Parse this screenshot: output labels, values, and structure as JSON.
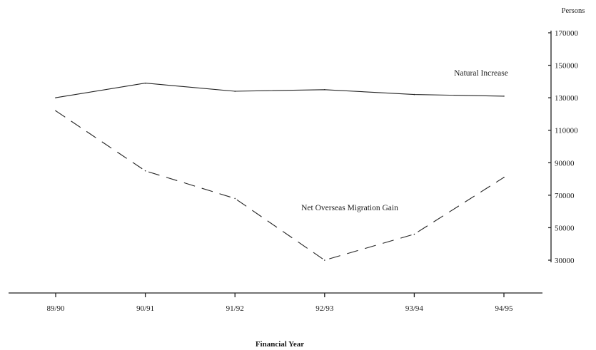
{
  "chart_data": {
    "type": "line",
    "categories": [
      "89/90",
      "90/91",
      "91/92",
      "92/93",
      "93/94",
      "94/95"
    ],
    "xlabel": "Financial Year",
    "ylabel": "Persons",
    "yticks": [
      "170000",
      "150000",
      "130000",
      "110000",
      "90000",
      "70000",
      "50000",
      "30000"
    ],
    "ylim": [
      30000,
      170000
    ],
    "grid": false,
    "legend": "none",
    "series": [
      {
        "name": "Natural Increase",
        "values": [
          130000,
          139000,
          134000,
          135000,
          132000,
          131000
        ],
        "style": "solid"
      },
      {
        "name": "Net Overseas Migration Gain",
        "values": [
          122000,
          85000,
          68000,
          30000,
          46000,
          81000
        ],
        "style": "dashed"
      }
    ]
  }
}
